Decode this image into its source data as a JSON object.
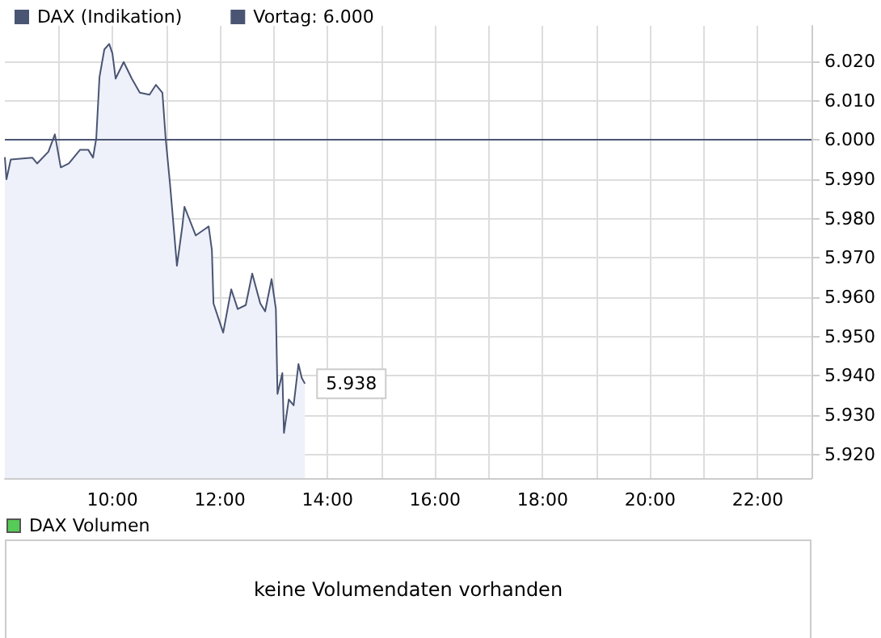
{
  "chart_data": [
    {
      "type": "area",
      "x": [
        8.0,
        8.03,
        8.11,
        8.51,
        8.6,
        8.81,
        8.93,
        9.04,
        9.19,
        9.4,
        9.55,
        9.64,
        9.7,
        9.76,
        9.85,
        9.94,
        10.0,
        10.06,
        10.21,
        10.36,
        10.51,
        10.69,
        10.81,
        10.93,
        10.99,
        11.07,
        11.16,
        11.2,
        11.3,
        11.34,
        11.55,
        11.79,
        11.85,
        11.88,
        12.06,
        12.21,
        12.33,
        12.48,
        12.6,
        12.75,
        12.84,
        12.96,
        13.04,
        13.07,
        13.16,
        13.19,
        13.28,
        13.37,
        13.46,
        13.52,
        13.58
      ],
      "series": [
        {
          "name": "DAX (Indikation)",
          "color": "#4a5573",
          "values": [
            5995.6,
            5990,
            5995,
            5995.5,
            5994,
            5997,
            6001.4,
            5993,
            5994,
            5997.5,
            5997.5,
            5995.5,
            6000.4,
            6016,
            6023,
            6024.4,
            6022,
            6015.6,
            6019.8,
            6015.6,
            6012,
            6011.5,
            6014,
            6012,
            6000.4,
            5989,
            5974.5,
            5968,
            5978,
            5983,
            5975.7,
            5978,
            5972,
            5958.4,
            5951,
            5962,
            5957,
            5958,
            5966,
            5958.4,
            5956.4,
            5964.6,
            5957,
            5935.4,
            5940.7,
            5925.5,
            5934,
            5932.5,
            5943,
            5939.5,
            5938
          ]
        }
      ],
      "xlim": [
        8,
        23
      ],
      "xticks": [
        {
          "value": 9,
          "label": null
        },
        {
          "value": 10,
          "label": "10:00"
        },
        {
          "value": 11,
          "label": null
        },
        {
          "value": 12,
          "label": "12:00"
        },
        {
          "value": 13,
          "label": null
        },
        {
          "value": 14,
          "label": "14:00"
        },
        {
          "value": 15,
          "label": null
        },
        {
          "value": 16,
          "label": "16:00"
        },
        {
          "value": 17,
          "label": null
        },
        {
          "value": 18,
          "label": "18:00"
        },
        {
          "value": 19,
          "label": null
        },
        {
          "value": 20,
          "label": "20:00"
        },
        {
          "value": 21,
          "label": null
        },
        {
          "value": 22,
          "label": "22:00"
        }
      ],
      "ylim": [
        5914,
        6029
      ],
      "yticks": [
        {
          "value": 5920,
          "label": "5.920"
        },
        {
          "value": 5930,
          "label": "5.930"
        },
        {
          "value": 5940,
          "label": "5.940"
        },
        {
          "value": 5950,
          "label": "5.950"
        },
        {
          "value": 5960,
          "label": "5.960"
        },
        {
          "value": 5970,
          "label": "5.970"
        },
        {
          "value": 5980,
          "label": "5.980"
        },
        {
          "value": 5990,
          "label": "5.990"
        },
        {
          "value": 6000,
          "label": "6.000"
        },
        {
          "value": 6010,
          "label": "6.010"
        },
        {
          "value": 6020,
          "label": "6.020"
        }
      ],
      "ref_lines": [
        {
          "axis": "y",
          "value": 6000,
          "label": "Vortag: 6.000",
          "color": "#4a5573"
        }
      ],
      "annotations": [
        {
          "text": "5.938",
          "x": 13.58,
          "y": 5938
        }
      ],
      "grid": true,
      "legend": "top left"
    },
    {
      "type": "other",
      "title": "DAX Volumen",
      "annotations": [
        "keine Volumendaten vorhanden"
      ]
    }
  ]
}
